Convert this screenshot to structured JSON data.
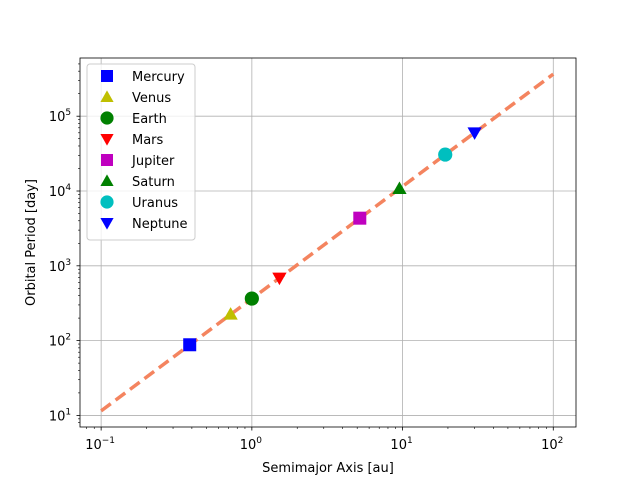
{
  "chart_data": {
    "type": "scatter",
    "xlabel": "Semimajor Axis [au]",
    "ylabel": "Orbital Period [day]",
    "xscale": "log",
    "yscale": "log",
    "xlim": [
      0.0724,
      141.5
    ],
    "ylim": [
      7.0,
      600000
    ],
    "xticks": [
      {
        "value": 0.1,
        "base": "10",
        "exp": "−1"
      },
      {
        "value": 1,
        "base": "10",
        "exp": "0"
      },
      {
        "value": 10,
        "base": "10",
        "exp": "1"
      },
      {
        "value": 100,
        "base": "10",
        "exp": "2"
      }
    ],
    "yticks": [
      {
        "value": 10,
        "base": "10",
        "exp": "1"
      },
      {
        "value": 100,
        "base": "10",
        "exp": "2"
      },
      {
        "value": 1000,
        "base": "10",
        "exp": "3"
      },
      {
        "value": 10000,
        "base": "10",
        "exp": "4"
      },
      {
        "value": 100000,
        "base": "10",
        "exp": "5"
      }
    ],
    "grid": true,
    "legend_position": "top-left",
    "fit_line": {
      "x": [
        0.1,
        100
      ],
      "y": [
        11.5,
        365000
      ],
      "color": "#f4845f",
      "style": "dashed"
    },
    "series": [
      {
        "name": "Mercury",
        "x": 0.387,
        "y": 88,
        "marker": "square",
        "color": "#0000ff"
      },
      {
        "name": "Venus",
        "x": 0.723,
        "y": 225,
        "marker": "triangle-up",
        "color": "#bfbf00"
      },
      {
        "name": "Earth",
        "x": 1.0,
        "y": 365,
        "marker": "circle",
        "color": "#008000"
      },
      {
        "name": "Mars",
        "x": 1.524,
        "y": 687,
        "marker": "triangle-down",
        "color": "#ff0000"
      },
      {
        "name": "Jupiter",
        "x": 5.203,
        "y": 4333,
        "marker": "square",
        "color": "#bf00bf"
      },
      {
        "name": "Saturn",
        "x": 9.537,
        "y": 10759,
        "marker": "triangle-up",
        "color": "#008000"
      },
      {
        "name": "Uranus",
        "x": 19.19,
        "y": 30687,
        "marker": "circle",
        "color": "#00bfbf"
      },
      {
        "name": "Neptune",
        "x": 30.07,
        "y": 60190,
        "marker": "triangle-down",
        "color": "#0000ff"
      }
    ]
  }
}
